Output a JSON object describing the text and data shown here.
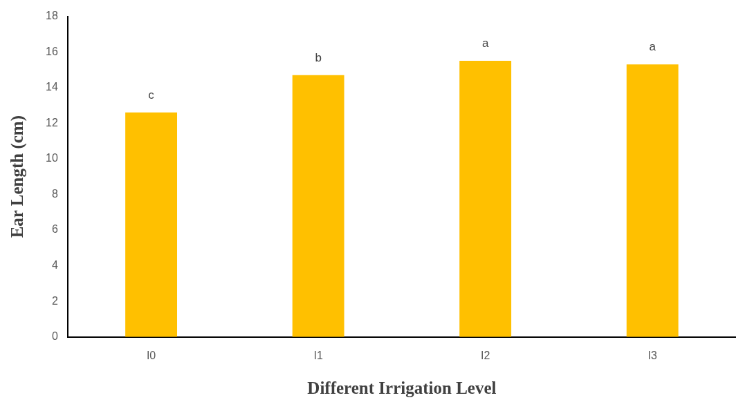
{
  "chart_data": {
    "type": "bar",
    "xlabel": "Different Irrigation Level",
    "ylabel": "Ear Length (cm)",
    "categories": [
      "I0",
      "I1",
      "I2",
      "I3"
    ],
    "values": [
      12.6,
      14.7,
      15.5,
      15.3
    ],
    "color": "#ffc000",
    "ylim": [
      0,
      18
    ],
    "yticks": [
      0,
      2,
      4,
      6,
      8,
      10,
      12,
      14,
      16,
      18
    ],
    "grid": false,
    "legend": false,
    "annotations": [
      {
        "text": "c",
        "x": "I0",
        "y": 12.6
      },
      {
        "text": "b",
        "x": "I1",
        "y": 14.7
      },
      {
        "text": "a",
        "x": "I2",
        "y": 15.5
      },
      {
        "text": "a",
        "x": "I3",
        "y": 15.3
      }
    ]
  }
}
